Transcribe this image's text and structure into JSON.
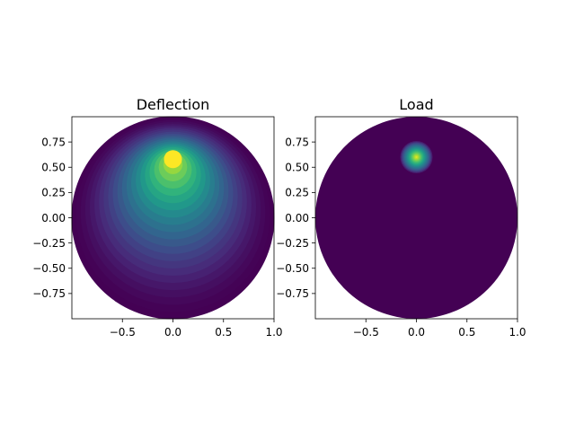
{
  "chart_data": [
    {
      "type": "heatmap",
      "title": "Deflection",
      "xlabel": "",
      "ylabel": "",
      "xlim": [
        -1.0,
        1.0
      ],
      "ylim": [
        -1.0,
        1.0
      ],
      "xticks": [
        -0.5,
        0.0,
        0.5,
        1.0
      ],
      "xtick_labels": [
        "−0.5",
        "0.0",
        "0.5",
        "1.0"
      ],
      "yticks": [
        0.75,
        0.5,
        0.25,
        0.0,
        -0.25,
        -0.5,
        -0.75
      ],
      "ytick_labels": [
        "0.75",
        "0.50",
        "0.25",
        "0.00",
        "−0.25",
        "−0.50",
        "−0.75"
      ],
      "domain": "unit disk",
      "peak": [
        0.0,
        0.58
      ],
      "colormap": "viridis",
      "grid": false
    },
    {
      "type": "heatmap",
      "title": "Load",
      "xlabel": "",
      "ylabel": "",
      "xlim": [
        -1.0,
        1.0
      ],
      "ylim": [
        -1.0,
        1.0
      ],
      "xticks": [
        -0.5,
        0.0,
        0.5,
        1.0
      ],
      "xtick_labels": [
        "−0.5",
        "0.0",
        "0.5",
        "1.0"
      ],
      "yticks": [
        0.75,
        0.5,
        0.25,
        0.0,
        -0.25,
        -0.5,
        -0.75
      ],
      "ytick_labels": [
        "0.75",
        "0.50",
        "0.25",
        "0.00",
        "−0.25",
        "−0.50",
        "−0.75"
      ],
      "domain": "unit disk",
      "peak": [
        0.0,
        0.6
      ],
      "colormap": "viridis",
      "grid": false
    }
  ],
  "colors": {
    "viridis_low": "#440154",
    "viridis_mid": "#21918c",
    "viridis_high": "#fde725"
  }
}
